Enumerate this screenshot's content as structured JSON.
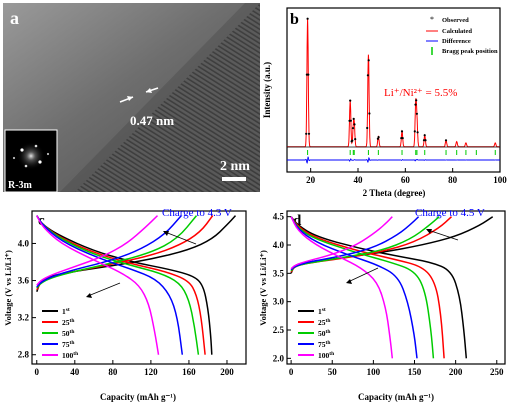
{
  "panels": {
    "a": {
      "label": "a",
      "scale_bar_text": "2 nm",
      "d_spacing_text": "0.47 nm",
      "inset_text": "R-3m"
    },
    "b": {
      "label": "b",
      "annotation": "Li⁺/Ni²⁺ = 5.5%",
      "ylabel": "Intensity (a.u.)",
      "xlabel": "2 Theta (degree)",
      "legend": [
        "Observed",
        "Calculated",
        "Difference",
        "Bragg peak position"
      ]
    },
    "c": {
      "label": "c",
      "title": "Charge to 4.3 V",
      "ylabel": "Voltage (V vs Li/Li⁺)",
      "xlabel": "Capacity (mAh g⁻¹)"
    },
    "d": {
      "label": "d",
      "title": "Charge to 4.5 V",
      "ylabel": "Voltage (V vs Li/Li⁺)",
      "xlabel": "Capacity (mAh g⁻¹)"
    }
  },
  "colors": {
    "cycle1": "#000000",
    "cycle25": "#ff0000",
    "cycle50": "#00cc00",
    "cycle75": "#0000ff",
    "cycle100": "#ff00ff",
    "observed": "#000000",
    "calculated": "#ff0000",
    "difference": "#0000ff",
    "bragg": "#00cc00",
    "title_blue": "#0000ff"
  },
  "chart_data": [
    {
      "panel": "b",
      "type": "line",
      "xlabel": "2 Theta (degree)",
      "ylabel": "Intensity (a.u.)",
      "xlim": [
        10,
        100
      ],
      "xticks": [
        20,
        40,
        60,
        80,
        100
      ],
      "peaks": [
        {
          "x": 18.7,
          "h": 1.0
        },
        {
          "x": 36.7,
          "h": 0.36
        },
        {
          "x": 38.0,
          "h": 0.12
        },
        {
          "x": 38.4,
          "h": 0.16
        },
        {
          "x": 44.4,
          "h": 0.72
        },
        {
          "x": 48.6,
          "h": 0.08
        },
        {
          "x": 58.6,
          "h": 0.12
        },
        {
          "x": 64.4,
          "h": 0.33
        },
        {
          "x": 64.9,
          "h": 0.19
        },
        {
          "x": 68.2,
          "h": 0.09
        },
        {
          "x": 77.2,
          "h": 0.05
        },
        {
          "x": 81.7,
          "h": 0.04
        },
        {
          "x": 85.6,
          "h": 0.03
        },
        {
          "x": 98.0,
          "h": 0.03
        }
      ],
      "bragg_positions": [
        18.7,
        36.7,
        38.0,
        38.4,
        44.4,
        48.6,
        58.6,
        64.4,
        64.9,
        68.2,
        77.2,
        81.7,
        85.6,
        90.0,
        98.0
      ]
    },
    {
      "panel": "c",
      "type": "line",
      "title": "Charge to 4.3 V",
      "xlabel": "Capacity (mAh g⁻¹)",
      "ylabel": "Voltage (V vs Li/Li⁺)",
      "xlim": [
        -5,
        220
      ],
      "ylim": [
        2.7,
        4.35
      ],
      "xticks": [
        0,
        40,
        80,
        120,
        160,
        200
      ],
      "yticks": [
        2.8,
        3.2,
        3.6,
        4.0
      ],
      "series": [
        {
          "name": "1st",
          "color": "#000000",
          "charge": [
            [
              0,
              3.48
            ],
            [
              4,
              3.6
            ],
            [
              15,
              3.65
            ],
            [
              40,
              3.7
            ],
            [
              80,
              3.76
            ],
            [
              120,
              3.83
            ],
            [
              160,
              3.93
            ],
            [
              185,
              4.05
            ],
            [
              200,
              4.2
            ],
            [
              209,
              4.3
            ]
          ],
          "discharge": [
            [
              0,
              4.3
            ],
            [
              6,
              4.2
            ],
            [
              25,
              4.08
            ],
            [
              60,
              3.92
            ],
            [
              100,
              3.8
            ],
            [
              140,
              3.72
            ],
            [
              165,
              3.65
            ],
            [
              175,
              3.55
            ],
            [
              180,
              3.3
            ],
            [
              183,
              3.0
            ],
            [
              184,
              2.8
            ]
          ]
        },
        {
          "name": "25th",
          "color": "#ff0000",
          "charge": [
            [
              0,
              3.5
            ],
            [
              4,
              3.58
            ],
            [
              15,
              3.64
            ],
            [
              40,
              3.7
            ],
            [
              80,
              3.78
            ],
            [
              120,
              3.87
            ],
            [
              150,
              3.98
            ],
            [
              172,
              4.12
            ],
            [
              185,
              4.3
            ]
          ],
          "discharge": [
            [
              0,
              4.3
            ],
            [
              6,
              4.2
            ],
            [
              25,
              4.06
            ],
            [
              60,
              3.9
            ],
            [
              100,
              3.78
            ],
            [
              135,
              3.7
            ],
            [
              160,
              3.6
            ],
            [
              168,
              3.45
            ],
            [
              173,
              3.2
            ],
            [
              177,
              2.8
            ]
          ]
        },
        {
          "name": "50th",
          "color": "#00cc00",
          "charge": [
            [
              0,
              3.52
            ],
            [
              4,
              3.57
            ],
            [
              15,
              3.63
            ],
            [
              40,
              3.7
            ],
            [
              80,
              3.79
            ],
            [
              120,
              3.9
            ],
            [
              148,
              4.05
            ],
            [
              168,
              4.3
            ]
          ],
          "discharge": [
            [
              0,
              4.3
            ],
            [
              6,
              4.2
            ],
            [
              25,
              4.05
            ],
            [
              60,
              3.88
            ],
            [
              100,
              3.76
            ],
            [
              130,
              3.68
            ],
            [
              150,
              3.58
            ],
            [
              160,
              3.4
            ],
            [
              166,
              3.1
            ],
            [
              170,
              2.8
            ]
          ]
        },
        {
          "name": "75th",
          "color": "#0000ff",
          "charge": [
            [
              0,
              3.53
            ],
            [
              4,
              3.58
            ],
            [
              15,
              3.64
            ],
            [
              40,
              3.72
            ],
            [
              80,
              3.82
            ],
            [
              110,
              3.94
            ],
            [
              135,
              4.1
            ],
            [
              152,
              4.3
            ]
          ],
          "discharge": [
            [
              0,
              4.3
            ],
            [
              6,
              4.2
            ],
            [
              25,
              4.03
            ],
            [
              60,
              3.86
            ],
            [
              100,
              3.72
            ],
            [
              125,
              3.62
            ],
            [
              140,
              3.45
            ],
            [
              148,
              3.2
            ],
            [
              153,
              2.8
            ]
          ]
        },
        {
          "name": "100th",
          "color": "#ff00ff",
          "charge": [
            [
              0,
              3.55
            ],
            [
              4,
              3.6
            ],
            [
              15,
              3.66
            ],
            [
              40,
              3.75
            ],
            [
              70,
              3.86
            ],
            [
              95,
              4.0
            ],
            [
              115,
              4.18
            ],
            [
              127,
              4.3
            ]
          ],
          "discharge": [
            [
              0,
              4.3
            ],
            [
              6,
              4.18
            ],
            [
              25,
              4.0
            ],
            [
              60,
              3.82
            ],
            [
              90,
              3.68
            ],
            [
              108,
              3.55
            ],
            [
              118,
              3.35
            ],
            [
              124,
              3.05
            ],
            [
              128,
              2.8
            ]
          ]
        }
      ]
    },
    {
      "panel": "d",
      "type": "line",
      "title": "Charge to 4.5 V",
      "xlabel": "Capacity (mAh g⁻¹)",
      "ylabel": "Voltage (V vs Li/Li⁺)",
      "xlim": [
        -5,
        260
      ],
      "ylim": [
        1.9,
        4.6
      ],
      "xticks": [
        0,
        50,
        100,
        150,
        200,
        250
      ],
      "yticks": [
        2.0,
        2.5,
        3.0,
        3.5,
        4.0,
        4.5
      ],
      "series": [
        {
          "name": "1st",
          "color": "#000000",
          "charge": [
            [
              0,
              3.5
            ],
            [
              4,
              3.65
            ],
            [
              20,
              3.7
            ],
            [
              60,
              3.77
            ],
            [
              110,
              3.87
            ],
            [
              160,
              4.0
            ],
            [
              200,
              4.15
            ],
            [
              230,
              4.35
            ],
            [
              245,
              4.5
            ]
          ],
          "discharge": [
            [
              0,
              4.5
            ],
            [
              8,
              4.35
            ],
            [
              30,
              4.15
            ],
            [
              80,
              3.95
            ],
            [
              130,
              3.8
            ],
            [
              170,
              3.7
            ],
            [
              195,
              3.55
            ],
            [
              205,
              3.1
            ],
            [
              210,
              2.5
            ],
            [
              213,
              2.0
            ]
          ]
        },
        {
          "name": "25th",
          "color": "#ff0000",
          "charge": [
            [
              0,
              3.52
            ],
            [
              4,
              3.62
            ],
            [
              20,
              3.68
            ],
            [
              60,
              3.76
            ],
            [
              110,
              3.88
            ],
            [
              150,
              4.05
            ],
            [
              180,
              4.3
            ],
            [
              195,
              4.5
            ]
          ],
          "discharge": [
            [
              0,
              4.5
            ],
            [
              8,
              4.33
            ],
            [
              30,
              4.12
            ],
            [
              80,
              3.9
            ],
            [
              125,
              3.75
            ],
            [
              160,
              3.62
            ],
            [
              175,
              3.35
            ],
            [
              182,
              2.8
            ],
            [
              186,
              2.0
            ]
          ]
        },
        {
          "name": "50th",
          "color": "#00cc00",
          "charge": [
            [
              0,
              3.54
            ],
            [
              4,
              3.62
            ],
            [
              20,
              3.68
            ],
            [
              60,
              3.77
            ],
            [
              110,
              3.9
            ],
            [
              145,
              4.1
            ],
            [
              168,
              4.35
            ],
            [
              180,
              4.5
            ]
          ],
          "discharge": [
            [
              0,
              4.5
            ],
            [
              8,
              4.3
            ],
            [
              30,
              4.1
            ],
            [
              80,
              3.86
            ],
            [
              120,
              3.7
            ],
            [
              150,
              3.55
            ],
            [
              163,
              3.2
            ],
            [
              170,
              2.5
            ],
            [
              173,
              2.0
            ]
          ]
        },
        {
          "name": "75th",
          "color": "#0000ff",
          "charge": [
            [
              0,
              3.56
            ],
            [
              4,
              3.62
            ],
            [
              20,
              3.7
            ],
            [
              60,
              3.8
            ],
            [
              100,
              3.95
            ],
            [
              130,
              4.18
            ],
            [
              148,
              4.4
            ],
            [
              155,
              4.5
            ]
          ],
          "discharge": [
            [
              0,
              4.5
            ],
            [
              8,
              4.28
            ],
            [
              30,
              4.05
            ],
            [
              70,
              3.82
            ],
            [
              105,
              3.65
            ],
            [
              130,
              3.45
            ],
            [
              142,
              3.0
            ],
            [
              150,
              2.4
            ],
            [
              153,
              2.0
            ]
          ]
        },
        {
          "name": "100th",
          "color": "#ff00ff",
          "charge": [
            [
              0,
              3.58
            ],
            [
              4,
              3.64
            ],
            [
              20,
              3.72
            ],
            [
              50,
              3.83
            ],
            [
              80,
              4.0
            ],
            [
              105,
              4.25
            ],
            [
              118,
              4.42
            ],
            [
              123,
              4.5
            ]
          ],
          "discharge": [
            [
              0,
              4.5
            ],
            [
              8,
              4.25
            ],
            [
              30,
              4.0
            ],
            [
              60,
              3.78
            ],
            [
              85,
              3.6
            ],
            [
              105,
              3.35
            ],
            [
              115,
              2.9
            ],
            [
              120,
              2.4
            ],
            [
              123,
              2.0
            ]
          ]
        }
      ]
    }
  ]
}
